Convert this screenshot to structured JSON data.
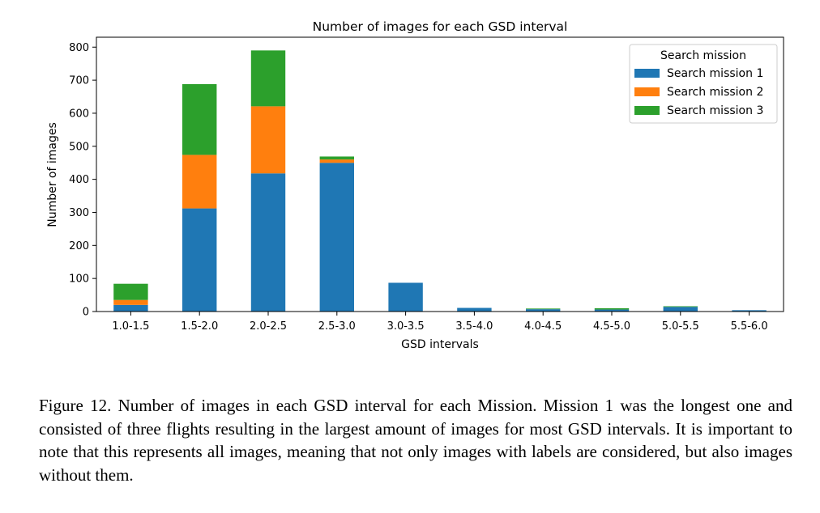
{
  "chart_data": {
    "type": "bar",
    "stacked": true,
    "title": "Number of images for each GSD interval",
    "xlabel": "GSD intervals",
    "ylabel": "Number of images",
    "ylim": [
      0,
      830
    ],
    "yticks": [
      0,
      100,
      200,
      300,
      400,
      500,
      600,
      700,
      800
    ],
    "categories": [
      "1.0-1.5",
      "1.5-2.0",
      "2.0-2.5",
      "2.5-3.0",
      "3.0-3.5",
      "3.5-4.0",
      "4.0-4.5",
      "4.5-5.0",
      "5.0-5.5",
      "5.5-6.0"
    ],
    "legend": {
      "title": "Search mission",
      "placement": "top-right"
    },
    "grid": false,
    "series": [
      {
        "name": "Search mission 1",
        "color": "#1f77b4",
        "values": [
          20,
          312,
          418,
          450,
          87,
          11,
          7,
          6,
          14,
          4
        ]
      },
      {
        "name": "Search mission 2",
        "color": "#ff7f0e",
        "values": [
          15,
          162,
          203,
          10,
          0,
          0,
          0,
          0,
          0,
          0
        ]
      },
      {
        "name": "Search mission 3",
        "color": "#2ca02c",
        "values": [
          49,
          214,
          169,
          9,
          0,
          0,
          2,
          4,
          2,
          0
        ]
      }
    ]
  },
  "caption": "Figure 12. Number of images in each GSD interval for each Mission. Mission 1 was the longest one and consisted of three flights resulting in the largest amount of images for most GSD intervals. It is important to note that this represents all images, meaning that not only images with labels are considered, but also images without them."
}
